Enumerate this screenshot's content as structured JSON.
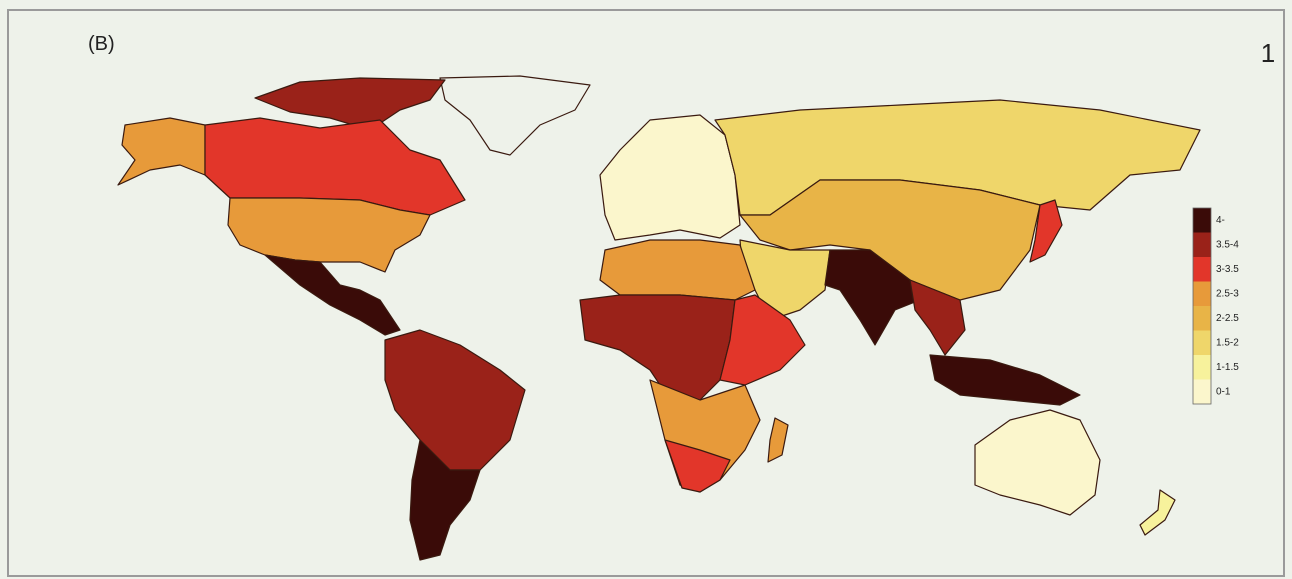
{
  "panel_label": "(B)",
  "page_number": "1",
  "legend": {
    "items": [
      {
        "label": "4-",
        "color": "#3a0b08"
      },
      {
        "label": "3.5-4",
        "color": "#9a2219"
      },
      {
        "label": "3-3.5",
        "color": "#e2362a"
      },
      {
        "label": "2.5-3",
        "color": "#e79a3a"
      },
      {
        "label": "2-2.5",
        "color": "#e8b447"
      },
      {
        "label": "1.5-2",
        "color": "#efd66a"
      },
      {
        "label": "1-1.5",
        "color": "#f7f29c"
      },
      {
        "label": "0-1",
        "color": "#fbf6cc"
      }
    ]
  }
}
